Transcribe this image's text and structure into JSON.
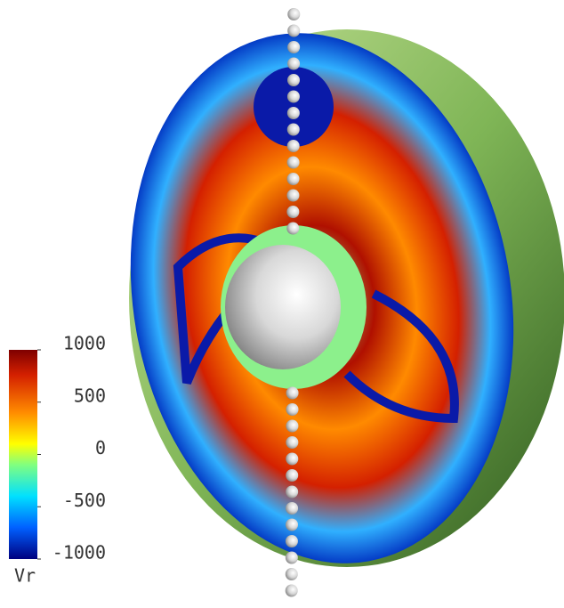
{
  "colorbar": {
    "label": "Vr",
    "range": [
      -1000,
      1000
    ],
    "ticks": [
      1000,
      500,
      0,
      -500,
      -1000
    ]
  }
}
